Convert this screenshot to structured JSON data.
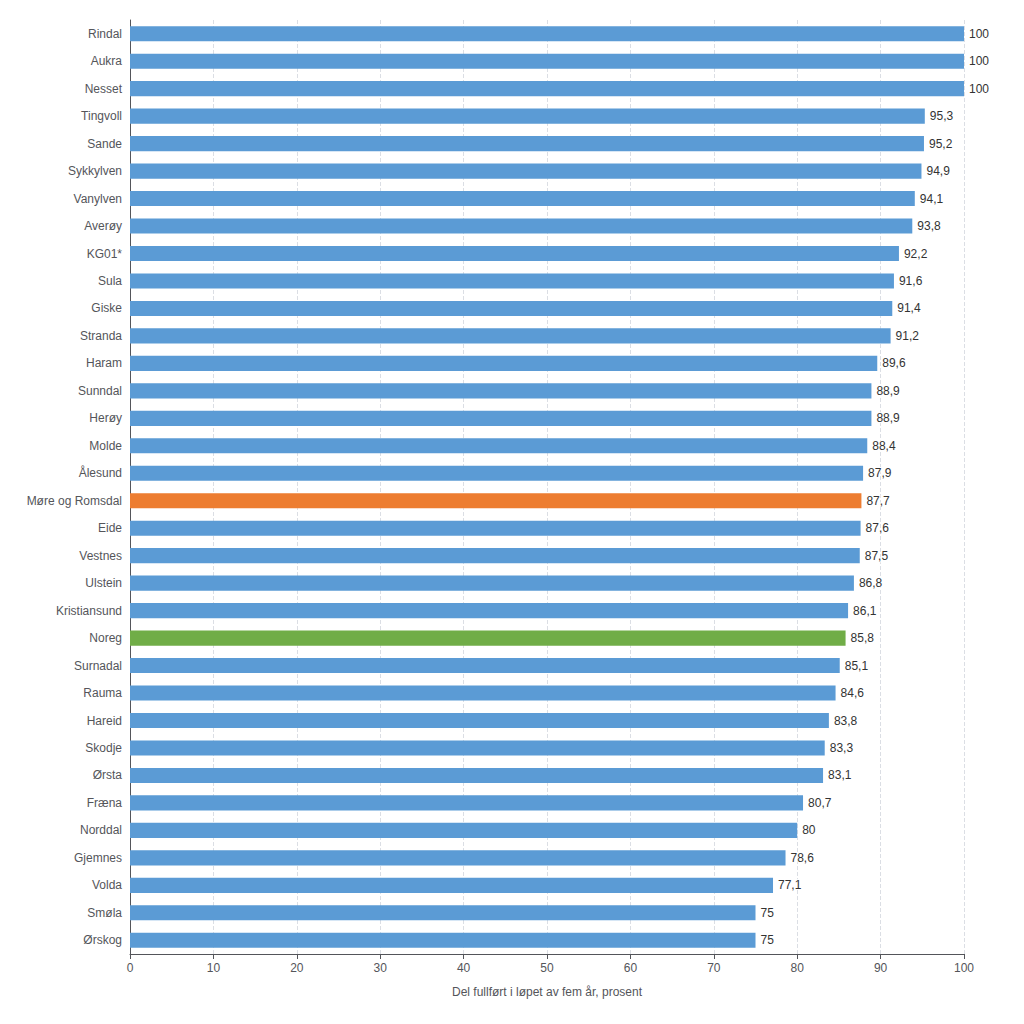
{
  "chart_data": {
    "type": "bar",
    "orientation": "horizontal",
    "categories": [
      "Rindal",
      "Aukra",
      "Nesset",
      "Tingvoll",
      "Sande",
      "Sykkylven",
      "Vanylven",
      "Averøy",
      "KG01*",
      "Sula",
      "Giske",
      "Stranda",
      "Haram",
      "Sunndal",
      "Herøy",
      "Molde",
      "Ålesund",
      "Møre og Romsdal",
      "Eide",
      "Vestnes",
      "Ulstein",
      "Kristiansund",
      "Noreg",
      "Surnadal",
      "Rauma",
      "Hareid",
      "Skodje",
      "Ørsta",
      "Fræna",
      "Norddal",
      "Gjemnes",
      "Volda",
      "Smøla",
      "Ørskog"
    ],
    "values": [
      100,
      100,
      100,
      95.3,
      95.2,
      94.9,
      94.1,
      93.8,
      92.2,
      91.6,
      91.4,
      91.2,
      89.6,
      88.9,
      88.9,
      88.4,
      87.9,
      87.7,
      87.6,
      87.5,
      86.8,
      86.1,
      85.8,
      85.1,
      84.6,
      83.8,
      83.3,
      83.1,
      80.7,
      80,
      78.6,
      77.1,
      75,
      75
    ],
    "value_labels": [
      "100",
      "100",
      "100",
      "95,3",
      "95,2",
      "94,9",
      "94,1",
      "93,8",
      "92,2",
      "91,6",
      "91,4",
      "91,2",
      "89,6",
      "88,9",
      "88,9",
      "88,4",
      "87,9",
      "87,7",
      "87,6",
      "87,5",
      "86,8",
      "86,1",
      "85,8",
      "85,1",
      "84,6",
      "83,8",
      "83,3",
      "83,1",
      "80,7",
      "80",
      "78,6",
      "77,1",
      "75",
      "75"
    ],
    "colors": [
      "#5B9BD5",
      "#5B9BD5",
      "#5B9BD5",
      "#5B9BD5",
      "#5B9BD5",
      "#5B9BD5",
      "#5B9BD5",
      "#5B9BD5",
      "#5B9BD5",
      "#5B9BD5",
      "#5B9BD5",
      "#5B9BD5",
      "#5B9BD5",
      "#5B9BD5",
      "#5B9BD5",
      "#5B9BD5",
      "#5B9BD5",
      "#ED7D31",
      "#5B9BD5",
      "#5B9BD5",
      "#5B9BD5",
      "#5B9BD5",
      "#70AD47",
      "#5B9BD5",
      "#5B9BD5",
      "#5B9BD5",
      "#5B9BD5",
      "#5B9BD5",
      "#5B9BD5",
      "#5B9BD5",
      "#5B9BD5",
      "#5B9BD5",
      "#5B9BD5",
      "#5B9BD5"
    ],
    "xlabel": "Del fullført i løpet av fem år, prosent",
    "xlim": [
      0,
      100
    ],
    "xticks": [
      0,
      10,
      20,
      30,
      40,
      50,
      60,
      70,
      80,
      90,
      100
    ],
    "grid": true,
    "data_labels": true
  }
}
